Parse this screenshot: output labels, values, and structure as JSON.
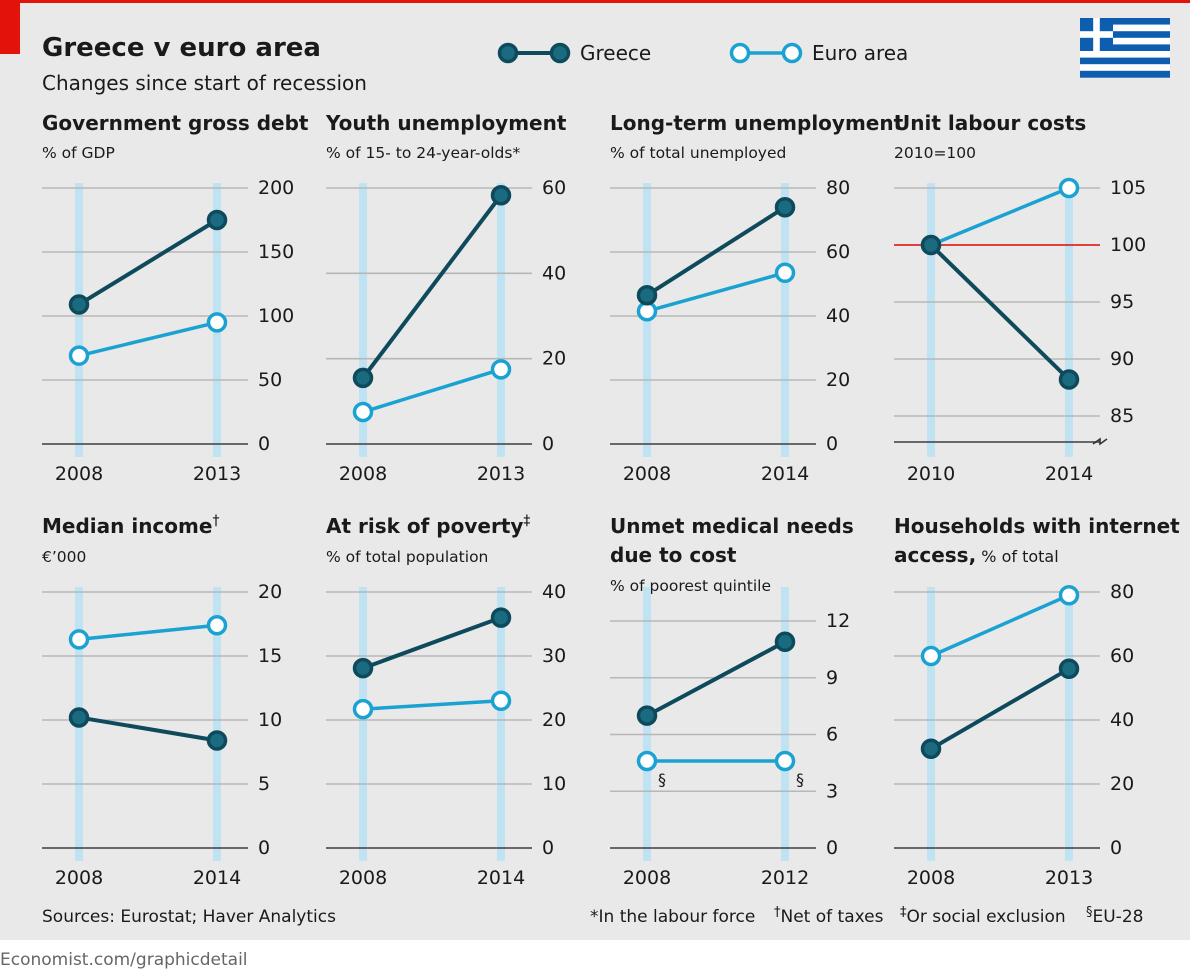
{
  "header": {
    "title": "Greece v euro area",
    "subtitle": "Changes since start of recession",
    "legend": [
      {
        "name": "Greece",
        "style": "filled"
      },
      {
        "name": "Euro area",
        "style": "hollow"
      }
    ]
  },
  "colors": {
    "background": "#e9e9e9",
    "accent_red": "#e3120b",
    "greece_line": "#0e4a5c",
    "greece_fill": "#1a6a80",
    "euro_line": "#1aa2d2",
    "marker_bar": "#bfe3f2",
    "grid": "#b7b7b7",
    "ref_line": "#e3120b",
    "text": "#1a1a1a",
    "footer_text": "#666666",
    "flag_blue": "#0d5eaf"
  },
  "chart_data": [
    {
      "type": "line",
      "title": "Government gross debt",
      "unit": "% of GDP",
      "categories": [
        "2008",
        "2013"
      ],
      "ylim": [
        0,
        200
      ],
      "yticks": [
        0,
        50,
        100,
        150,
        200
      ],
      "ytick_labels": [
        "0",
        "50",
        "100",
        "150",
        "200"
      ],
      "series": [
        {
          "name": "Greece",
          "values": [
            109,
            175
          ]
        },
        {
          "name": "Euro area",
          "values": [
            69,
            95
          ]
        }
      ]
    },
    {
      "type": "line",
      "title": "Youth unemployment",
      "unit": "% of 15- to 24-year-olds*",
      "categories": [
        "2008",
        "2013"
      ],
      "ylim": [
        0,
        60
      ],
      "yticks": [
        0,
        20,
        40,
        60
      ],
      "ytick_labels": [
        "0",
        "20",
        "40",
        "60"
      ],
      "series": [
        {
          "name": "Greece",
          "values": [
            15.5,
            58.3
          ]
        },
        {
          "name": "Euro area",
          "values": [
            7.5,
            17.5
          ]
        }
      ]
    },
    {
      "type": "line",
      "title": "Long-term unemployment",
      "unit": "% of total unemployed",
      "categories": [
        "2008",
        "2014"
      ],
      "ylim": [
        0,
        80
      ],
      "yticks": [
        0,
        20,
        40,
        60,
        80
      ],
      "ytick_labels": [
        "0",
        "20",
        "40",
        "60",
        "80"
      ],
      "series": [
        {
          "name": "Greece",
          "values": [
            46.5,
            74
          ]
        },
        {
          "name": "Euro area",
          "values": [
            41.5,
            53.5
          ]
        }
      ]
    },
    {
      "type": "line",
      "title": "Unit labour costs",
      "unit": "2010=100",
      "categories": [
        "2010",
        "2014"
      ],
      "ylim": [
        82,
        105
      ],
      "yticks": [
        85,
        90,
        95,
        100,
        105
      ],
      "ytick_labels": [
        "85",
        "90",
        "95",
        "100",
        "105"
      ],
      "reference_line": 100,
      "axis_break": true,
      "series": [
        {
          "name": "Greece",
          "values": [
            100,
            88.2
          ]
        },
        {
          "name": "Euro area",
          "values": [
            100,
            105
          ]
        }
      ]
    },
    {
      "type": "line",
      "title": "Median income",
      "title_mark": "†",
      "unit": "€’000",
      "categories": [
        "2008",
        "2014"
      ],
      "ylim": [
        0,
        20
      ],
      "yticks": [
        0,
        5,
        10,
        15,
        20
      ],
      "ytick_labels": [
        "0",
        "5",
        "10",
        "15",
        "20"
      ],
      "series": [
        {
          "name": "Greece",
          "values": [
            10.2,
            8.4
          ]
        },
        {
          "name": "Euro area",
          "values": [
            16.3,
            17.4
          ]
        }
      ]
    },
    {
      "type": "line",
      "title": "At risk of poverty",
      "title_mark": "‡",
      "unit": "% of total population",
      "categories": [
        "2008",
        "2014"
      ],
      "ylim": [
        0,
        40
      ],
      "yticks": [
        0,
        10,
        20,
        30,
        40
      ],
      "ytick_labels": [
        "0",
        "10",
        "20",
        "30",
        "40"
      ],
      "series": [
        {
          "name": "Greece",
          "values": [
            28.1,
            36.0
          ]
        },
        {
          "name": "Euro area",
          "values": [
            21.7,
            23.0
          ]
        }
      ]
    },
    {
      "type": "line",
      "title": "Unmet medical needs",
      "title_line2": "due to cost",
      "unit": "% of poorest quintile",
      "categories": [
        "2008",
        "2012"
      ],
      "ylim": [
        0,
        12
      ],
      "yticks": [
        0,
        3,
        6,
        9,
        12
      ],
      "ytick_labels": [
        "0",
        "3",
        "6",
        "9",
        "12"
      ],
      "point_note": "§",
      "series": [
        {
          "name": "Greece",
          "values": [
            7.0,
            10.9
          ]
        },
        {
          "name": "Euro area",
          "values": [
            4.6,
            4.6
          ]
        }
      ]
    },
    {
      "type": "line",
      "title": "Households with internet",
      "title_line2": "access,",
      "title_line2_note": "% of total",
      "unit": "",
      "categories": [
        "2008",
        "2013"
      ],
      "ylim": [
        0,
        80
      ],
      "yticks": [
        0,
        20,
        40,
        60,
        80
      ],
      "ytick_labels": [
        "0",
        "20",
        "40",
        "60",
        "80"
      ],
      "series": [
        {
          "name": "Greece",
          "values": [
            31,
            56
          ]
        },
        {
          "name": "Euro area",
          "values": [
            60,
            79
          ]
        }
      ]
    }
  ],
  "footer": {
    "sources": "Sources: Eurostat; Haver Analytics",
    "notes": [
      {
        "mark": "*",
        "text": "In the labour force"
      },
      {
        "mark": "†",
        "text": "Net of taxes"
      },
      {
        "mark": "‡",
        "text": "Or social exclusion"
      },
      {
        "mark": "§",
        "text": "EU-28"
      }
    ],
    "credit": "Economist.com/graphicdetail"
  }
}
